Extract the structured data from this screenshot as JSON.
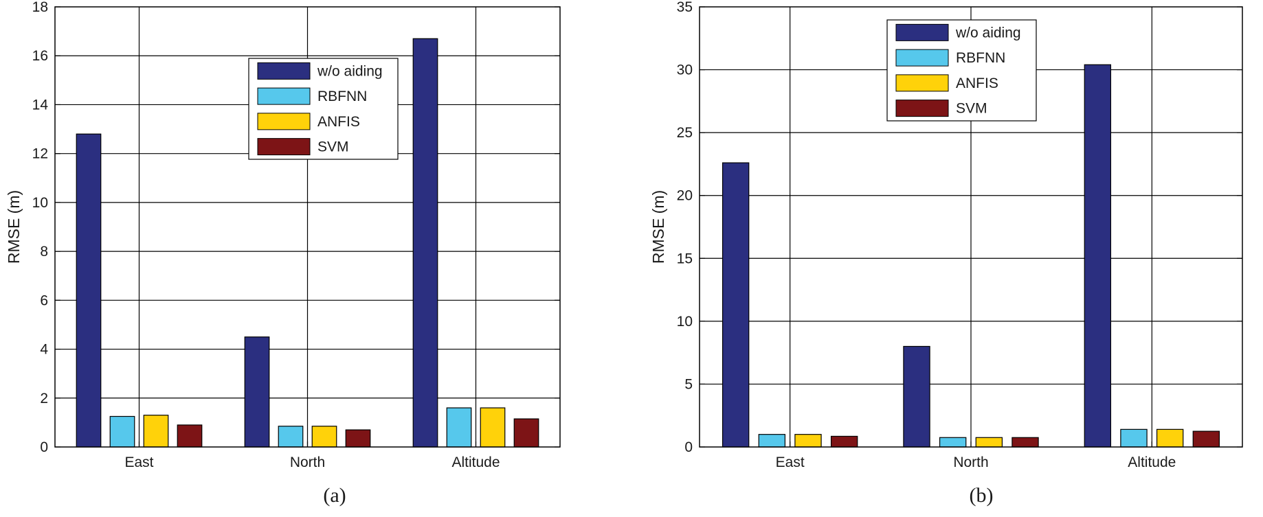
{
  "chart_data": [
    {
      "type": "bar",
      "panel": "(a)",
      "categories": [
        "East",
        "North",
        "Altitude"
      ],
      "series": [
        {
          "name": "w/o aiding",
          "color": "#2b2f80",
          "values": [
            12.8,
            4.5,
            16.7
          ]
        },
        {
          "name": "RBFNN",
          "color": "#56c8ec",
          "values": [
            1.25,
            0.85,
            1.6
          ]
        },
        {
          "name": "ANFIS",
          "color": "#ffd20a",
          "values": [
            1.3,
            0.85,
            1.6
          ]
        },
        {
          "name": "SVM",
          "color": "#7d1416",
          "values": [
            0.9,
            0.7,
            1.15
          ]
        }
      ],
      "ylabel": "RMSE (m)",
      "xlabel": "",
      "ylim": [
        0,
        18
      ],
      "yticks": [
        0,
        2,
        4,
        6,
        8,
        10,
        12,
        14,
        16,
        18
      ],
      "grid": true,
      "legend": "top-center"
    },
    {
      "type": "bar",
      "panel": "(b)",
      "categories": [
        "East",
        "North",
        "Altitude"
      ],
      "series": [
        {
          "name": "w/o aiding",
          "color": "#2b2f80",
          "values": [
            22.6,
            8.0,
            30.4
          ]
        },
        {
          "name": "RBFNN",
          "color": "#56c8ec",
          "values": [
            1.0,
            0.75,
            1.4
          ]
        },
        {
          "name": "ANFIS",
          "color": "#ffd20a",
          "values": [
            1.0,
            0.75,
            1.4
          ]
        },
        {
          "name": "SVM",
          "color": "#7d1416",
          "values": [
            0.85,
            0.75,
            1.25
          ]
        }
      ],
      "ylabel": "RMSE (m)",
      "xlabel": "",
      "ylim": [
        0,
        35
      ],
      "yticks": [
        0,
        5,
        10,
        15,
        20,
        25,
        30,
        35
      ],
      "grid": true,
      "legend": "top-center"
    }
  ]
}
